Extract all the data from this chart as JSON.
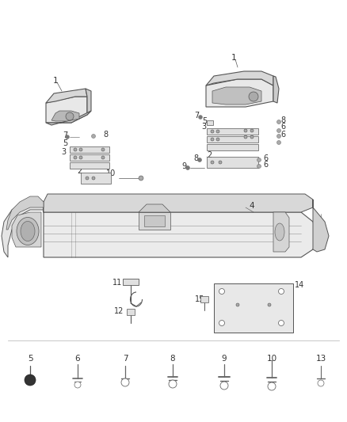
{
  "bg_color": "#ffffff",
  "line_color": "#888888",
  "dark_line": "#555555",
  "label_color": "#333333",
  "fig_width": 4.38,
  "fig_height": 5.33,
  "dpi": 100
}
